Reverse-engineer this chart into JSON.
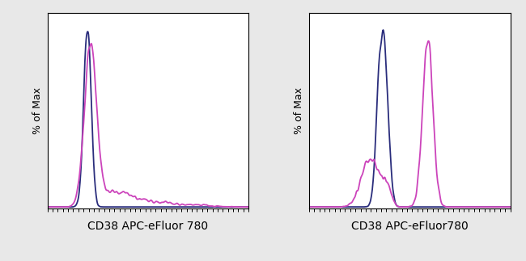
{
  "background_color": "#e8e8e8",
  "panel_bg": "#ffffff",
  "xlabel_left": "CD38 APC-eFluor 780",
  "xlabel_right": "CD38 APC-eFluor780",
  "ylabel": "% of Max",
  "dark_color": "#2a2d7c",
  "pink_color": "#cc44bb",
  "xlabel_fontsize": 10,
  "ylabel_fontsize": 9,
  "figsize": [
    6.5,
    3.23
  ],
  "dpi": 100
}
